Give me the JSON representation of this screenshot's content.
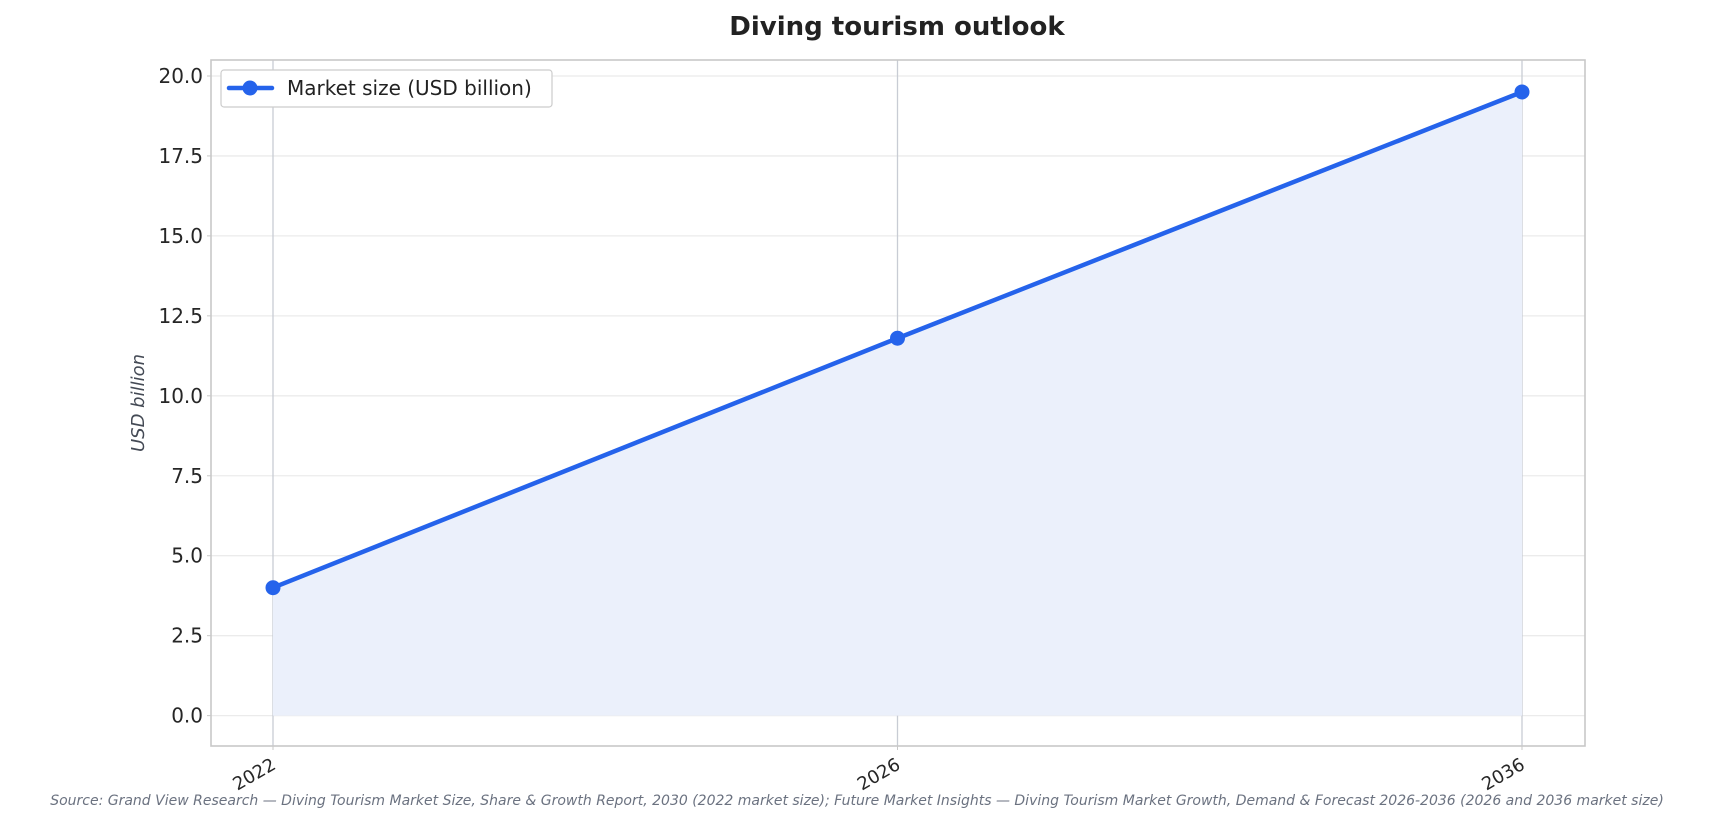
{
  "chart_data": {
    "type": "area",
    "title": "Diving tourism outlook",
    "xlabel": "",
    "ylabel": "USD billion",
    "categories": [
      "2022",
      "2026",
      "2036"
    ],
    "series": [
      {
        "name": "Market size (USD billion)",
        "values": [
          4.0,
          11.8,
          19.5
        ]
      }
    ],
    "ylim": [
      -0.95,
      20.5
    ],
    "yticks": [
      0.0,
      2.5,
      5.0,
      7.5,
      10.0,
      12.5,
      15.0,
      17.5,
      20.0
    ],
    "ytick_labels": [
      "0.0",
      "2.5",
      "5.0",
      "7.5",
      "10.0",
      "12.5",
      "15.0",
      "17.5",
      "20.0"
    ],
    "grid": true,
    "legend_position": "top-left",
    "source": "Source: Grand View Research — Diving Tourism Market Size, Share & Growth Report, 2030 (2022 market size); Future Market Insights — Diving Tourism Market Growth, Demand & Forecast 2026-2036 (2026 and 2036 market size)"
  },
  "colors": {
    "line": "#2563eb",
    "fill": "#ebf0fb",
    "grid": "#ebebeb",
    "frame": "#c8c8c8",
    "vgrid": "#c8ccd4"
  }
}
